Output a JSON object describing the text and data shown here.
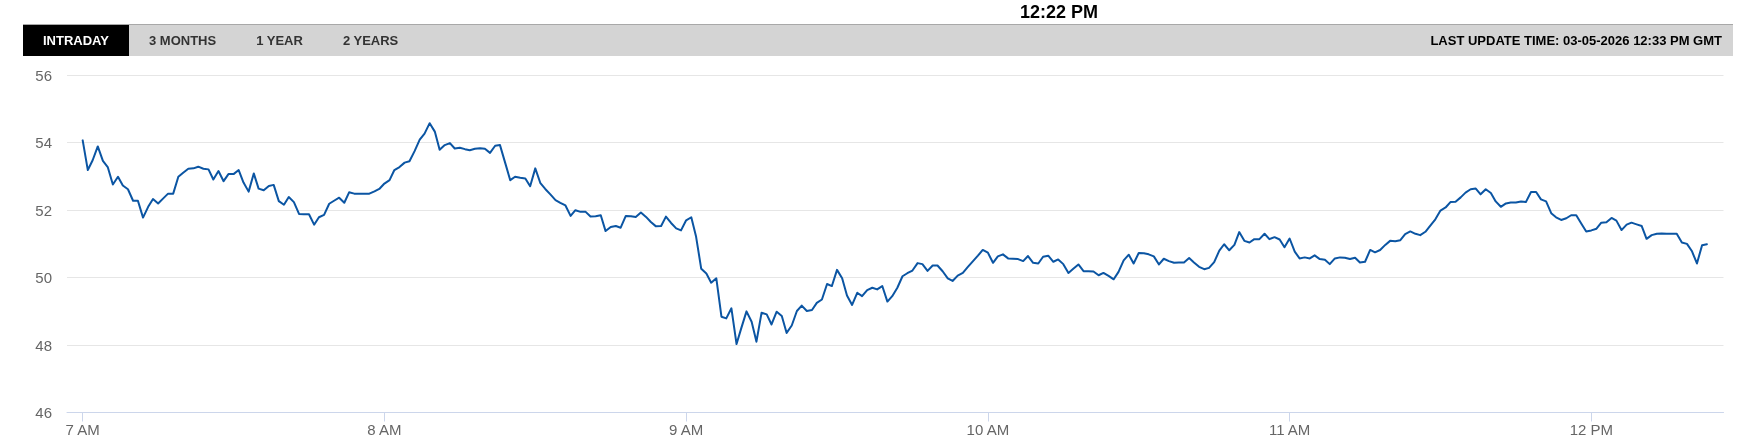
{
  "chart_data": {
    "type": "line",
    "annotations": [
      "12:22 PM",
      "INTRADAY",
      "3 MONTHS",
      "1 YEAR",
      "2 YEARS"
    ],
    "subtitle": "LAST UPDATE TIME: 03-05-2026 12:33 PM GMT",
    "x": [
      7,
      7.017,
      7.033,
      7.05,
      7.067,
      7.083,
      7.1,
      7.117,
      7.133,
      7.15,
      7.167,
      7.183,
      7.2,
      7.217,
      7.233,
      7.25,
      7.267,
      7.283,
      7.3,
      7.317,
      7.333,
      7.35,
      7.367,
      7.383,
      7.4,
      7.417,
      7.433,
      7.45,
      7.467,
      7.483,
      7.5,
      7.517,
      7.533,
      7.55,
      7.567,
      7.583,
      7.6,
      7.617,
      7.633,
      7.65,
      7.667,
      7.683,
      7.7,
      7.717,
      7.733,
      7.75,
      7.767,
      7.783,
      7.8,
      7.817,
      7.833,
      7.85,
      7.867,
      7.883,
      7.9,
      7.917,
      7.933,
      7.95,
      7.967,
      7.983,
      8,
      8.017,
      8.033,
      8.05,
      8.067,
      8.083,
      8.1,
      8.117,
      8.133,
      8.15,
      8.167,
      8.183,
      8.2,
      8.217,
      8.233,
      8.25,
      8.267,
      8.283,
      8.3,
      8.317,
      8.333,
      8.35,
      8.367,
      8.383,
      8.4,
      8.417,
      8.433,
      8.45,
      8.467,
      8.483,
      8.5,
      8.517,
      8.533,
      8.55,
      8.567,
      8.583,
      8.6,
      8.617,
      8.633,
      8.65,
      8.667,
      8.683,
      8.7,
      8.717,
      8.733,
      8.75,
      8.767,
      8.783,
      8.8,
      8.817,
      8.833,
      8.85,
      8.867,
      8.883,
      8.9,
      8.917,
      8.933,
      8.95,
      8.967,
      8.983,
      9,
      9.017,
      9.033,
      9.05,
      9.067,
      9.083,
      9.1,
      9.117,
      9.133,
      9.15,
      9.167,
      9.183,
      9.2,
      9.217,
      9.233,
      9.25,
      9.267,
      9.283,
      9.3,
      9.317,
      9.333,
      9.35,
      9.367,
      9.383,
      9.4,
      9.417,
      9.433,
      9.45,
      9.467,
      9.483,
      9.5,
      9.517,
      9.533,
      9.55,
      9.567,
      9.583,
      9.6,
      9.617,
      9.633,
      9.65,
      9.667,
      9.683,
      9.7,
      9.717,
      9.733,
      9.75,
      9.767,
      9.783,
      9.8,
      9.817,
      9.833,
      9.85,
      9.867,
      9.883,
      9.9,
      9.917,
      9.933,
      9.95,
      9.967,
      9.983,
      10,
      10.017,
      10.033,
      10.05,
      10.067,
      10.083,
      10.1,
      10.117,
      10.133,
      10.15,
      10.167,
      10.183,
      10.2,
      10.217,
      10.233,
      10.25,
      10.267,
      10.283,
      10.3,
      10.317,
      10.333,
      10.35,
      10.367,
      10.383,
      10.4,
      10.417,
      10.433,
      10.45,
      10.467,
      10.483,
      10.5,
      10.517,
      10.533,
      10.55,
      10.567,
      10.583,
      10.6,
      10.617,
      10.633,
      10.65,
      10.667,
      10.683,
      10.7,
      10.717,
      10.733,
      10.75,
      10.767,
      10.783,
      10.8,
      10.817,
      10.833,
      10.85,
      10.867,
      10.883,
      10.9,
      10.917,
      10.933,
      10.95,
      10.967,
      10.983,
      11,
      11.017,
      11.033,
      11.05,
      11.067,
      11.083,
      11.1,
      11.117,
      11.133,
      11.15,
      11.167,
      11.183,
      11.2,
      11.217,
      11.233,
      11.25,
      11.267,
      11.283,
      11.3,
      11.317,
      11.333,
      11.35,
      11.367,
      11.383,
      11.4,
      11.417,
      11.433,
      11.45,
      11.467,
      11.483,
      11.5,
      11.517,
      11.533,
      11.55,
      11.567,
      11.583,
      11.6,
      11.617,
      11.633,
      11.65,
      11.667,
      11.683,
      11.7,
      11.717,
      11.733,
      11.75,
      11.767,
      11.783,
      11.8,
      11.817,
      11.833,
      11.85,
      11.867,
      11.883,
      11.9,
      11.917,
      11.933,
      11.95,
      11.967,
      11.983,
      12,
      12.017,
      12.033,
      12.05,
      12.067,
      12.083,
      12.1,
      12.117,
      12.133,
      12.15,
      12.167,
      12.183,
      12.2,
      12.217,
      12.233,
      12.25,
      12.267,
      12.283,
      12.3,
      12.317,
      12.333,
      12.35,
      12.367,
      12.383
    ],
    "values": [
      54.07,
      53.19,
      53.48,
      53.89,
      53.46,
      53.28,
      52.76,
      52.99,
      52.73,
      52.62,
      52.28,
      52.28,
      51.78,
      52.1,
      52.33,
      52.2,
      52.35,
      52.49,
      52.49,
      52.99,
      53.11,
      53.23,
      53.24,
      53.29,
      53.23,
      53.21,
      52.91,
      53.16,
      52.86,
      53.07,
      53.07,
      53.19,
      52.82,
      52.55,
      53.09,
      52.64,
      52.59,
      52.72,
      52.75,
      52.27,
      52.16,
      52.39,
      52.24,
      51.89,
      51.88,
      51.88,
      51.57,
      51.79,
      51.86,
      52.19,
      52.28,
      52.37,
      52.22,
      52.53,
      52.49,
      52.49,
      52.49,
      52.49,
      52.56,
      52.63,
      52.79,
      52.89,
      53.19,
      53.28,
      53.41,
      53.45,
      53.75,
      54.09,
      54.27,
      54.58,
      54.33,
      53.79,
      53.93,
      53.99,
      53.83,
      53.85,
      53.81,
      53.78,
      53.82,
      53.84,
      53.82,
      53.7,
      53.91,
      53.93,
      53.41,
      52.89,
      52.99,
      52.96,
      52.94,
      52.71,
      53.24,
      52.8,
      52.63,
      52.47,
      52.3,
      52.22,
      52.14,
      51.83,
      52.0,
      51.95,
      51.95,
      51.81,
      51.82,
      51.85,
      51.38,
      51.5,
      51.53,
      51.48,
      51.83,
      51.82,
      51.8,
      51.93,
      51.8,
      51.65,
      51.52,
      51.53,
      51.81,
      51.62,
      51.46,
      51.4,
      51.7,
      51.79,
      51.21,
      50.26,
      50.12,
      49.85,
      49.98,
      48.84,
      48.79,
      49.09,
      48.03,
      48.51,
      49.0,
      48.69,
      48.1,
      48.96,
      48.91,
      48.61,
      48.99,
      48.86,
      48.36,
      48.58,
      49.01,
      49.17,
      49.01,
      49.04,
      49.25,
      49.35,
      49.81,
      49.75,
      50.23,
      49.98,
      49.47,
      49.19,
      49.55,
      49.45,
      49.63,
      49.7,
      49.65,
      49.75,
      49.29,
      49.45,
      49.7,
      50.04,
      50.13,
      50.21,
      50.43,
      50.4,
      50.2,
      50.36,
      50.36,
      50.19,
      49.98,
      49.9,
      50.06,
      50.14,
      50.31,
      50.48,
      50.65,
      50.82,
      50.74,
      50.44,
      50.63,
      50.69,
      50.57,
      50.56,
      50.55,
      50.49,
      50.64,
      50.44,
      50.42,
      50.62,
      50.65,
      50.47,
      50.54,
      50.4,
      50.14,
      50.26,
      50.39,
      50.19,
      50.19,
      50.18,
      50.07,
      50.14,
      50.05,
      49.95,
      50.17,
      50.51,
      50.68,
      50.42,
      50.73,
      50.72,
      50.69,
      50.63,
      50.39,
      50.56,
      50.49,
      50.44,
      50.45,
      50.45,
      50.58,
      50.45,
      50.32,
      50.25,
      50.29,
      50.46,
      50.8,
      50.99,
      50.81,
      50.97,
      51.35,
      51.09,
      51.04,
      51.14,
      51.14,
      51.3,
      51.14,
      51.2,
      51.13,
      50.9,
      51.16,
      50.77,
      50.57,
      50.6,
      50.57,
      50.66,
      50.55,
      50.53,
      50.4,
      50.57,
      50.6,
      50.59,
      50.55,
      50.59,
      50.45,
      50.47,
      50.82,
      50.75,
      50.82,
      50.97,
      51.09,
      51.08,
      51.11,
      51.29,
      51.37,
      51.3,
      51.26,
      51.36,
      51.55,
      51.73,
      51.99,
      52.08,
      52.24,
      52.25,
      52.38,
      52.52,
      52.62,
      52.64,
      52.47,
      52.62,
      52.51,
      52.26,
      52.1,
      52.2,
      52.23,
      52.23,
      52.26,
      52.24,
      52.54,
      52.54,
      52.32,
      52.26,
      51.91,
      51.79,
      51.71,
      51.76,
      51.85,
      51.85,
      51.6,
      51.37,
      51.4,
      51.45,
      51.63,
      51.64,
      51.77,
      51.69,
      51.41,
      51.57,
      51.63,
      51.58,
      51.53,
      51.15,
      51.26,
      51.3,
      51.31,
      51.3,
      51.3,
      51.3,
      51.04,
      51.0,
      50.79,
      50.42,
      50.96,
      50.99
    ],
    "color": "#0b55a3",
    "xlim": [
      6.948,
      12.438
    ],
    "xticks": [
      {
        "value": 7,
        "label": "7 AM"
      },
      {
        "value": 8,
        "label": "8 AM"
      },
      {
        "value": 9,
        "label": "9 AM"
      },
      {
        "value": 10,
        "label": "10 AM"
      },
      {
        "value": 11,
        "label": "11 AM"
      },
      {
        "value": 12,
        "label": "12 PM"
      }
    ],
    "ylim": [
      46,
      56
    ],
    "yticks": [
      46,
      48,
      50,
      52,
      54,
      56
    ],
    "grid": "y",
    "marker": "none",
    "line_style": "solid"
  }
}
